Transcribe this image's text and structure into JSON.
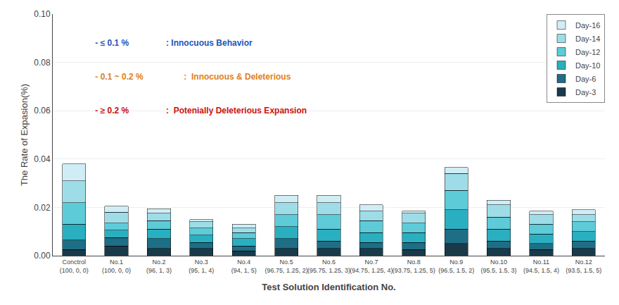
{
  "chart_data": {
    "type": "bar",
    "stacked": true,
    "categories": [
      "Conctrol\n(100, 0, 0)",
      "No.1\n(100, 0, 0)",
      "No.2\n(96, 1, 3)",
      "No.3\n(95, 1, 4)",
      "No.4\n(94, 1, 5)",
      "No.5\n(96.75, 1.25, 2)",
      "No.6\n(95.75, 1.25, 3)",
      "No.7\n(94.75, 1.25, 4)",
      "No.8\n(93.75, 1.25, 5)",
      "No.9\n(96.5, 1.5, 2)",
      "No.10\n(95.5, 1.5, 3)",
      "No.11\n(94.5, 1.5, 4)",
      "No.12\n(93.5, 1.5, 5)"
    ],
    "series": [
      {
        "name": "Day-3",
        "color": "#1a3a4a",
        "values": [
          0.0025,
          0.004,
          0.003,
          0.003,
          0.002,
          0.003,
          0.003,
          0.003,
          0.0025,
          0.005,
          0.003,
          0.0025,
          0.003
        ]
      },
      {
        "name": "Day-6",
        "color": "#1e6e85",
        "values": [
          0.004,
          0.0035,
          0.004,
          0.0025,
          0.002,
          0.004,
          0.003,
          0.0025,
          0.003,
          0.006,
          0.003,
          0.0025,
          0.003
        ]
      },
      {
        "name": "Day-10",
        "color": "#2aafc0",
        "values": [
          0.0065,
          0.003,
          0.004,
          0.003,
          0.003,
          0.005,
          0.005,
          0.004,
          0.004,
          0.008,
          0.005,
          0.004,
          0.004
        ]
      },
      {
        "name": "Day-12",
        "color": "#5dcbd8",
        "values": [
          0.009,
          0.003,
          0.0035,
          0.003,
          0.0025,
          0.005,
          0.006,
          0.005,
          0.004,
          0.008,
          0.005,
          0.004,
          0.004
        ]
      },
      {
        "name": "Day-14",
        "color": "#9edde8",
        "values": [
          0.009,
          0.0045,
          0.003,
          0.0025,
          0.002,
          0.005,
          0.005,
          0.004,
          0.004,
          0.007,
          0.005,
          0.004,
          0.003
        ]
      },
      {
        "name": "Day-16",
        "color": "#d0edf5",
        "values": [
          0.007,
          0.0025,
          0.002,
          0.001,
          0.0015,
          0.003,
          0.003,
          0.0025,
          0.001,
          0.0025,
          0.002,
          0.0015,
          0.002
        ]
      }
    ],
    "ylim": [
      0.0,
      0.1
    ],
    "yticks": [
      {
        "value": 0.0,
        "label": "0.00"
      },
      {
        "value": 0.02,
        "label": "0.02"
      },
      {
        "value": 0.04,
        "label": "0.04"
      },
      {
        "value": 0.06,
        "label": "0.06"
      },
      {
        "value": 0.08,
        "label": "0.08"
      },
      {
        "value": 0.1,
        "label": "0.10"
      }
    ],
    "ylabel": "The Rate of Expasion(%)",
    "xlabel": "Test Solution Identification No.",
    "grid": true,
    "legend": "upper right",
    "annotations": [
      {
        "texts": [
          " - ≤ 0.1 %",
          "   : Innocuous Behavior"
        ],
        "color": "#2255bb"
      },
      {
        "texts": [
          " - 0.1 ~ 0.2 %",
          " :  Innocuous & Deleterious"
        ],
        "color": "#e08020"
      },
      {
        "texts": [
          " - ≥ 0.2 %",
          "   :  Potenially Deleterious Expansion"
        ],
        "color": "#cc1111"
      }
    ]
  }
}
